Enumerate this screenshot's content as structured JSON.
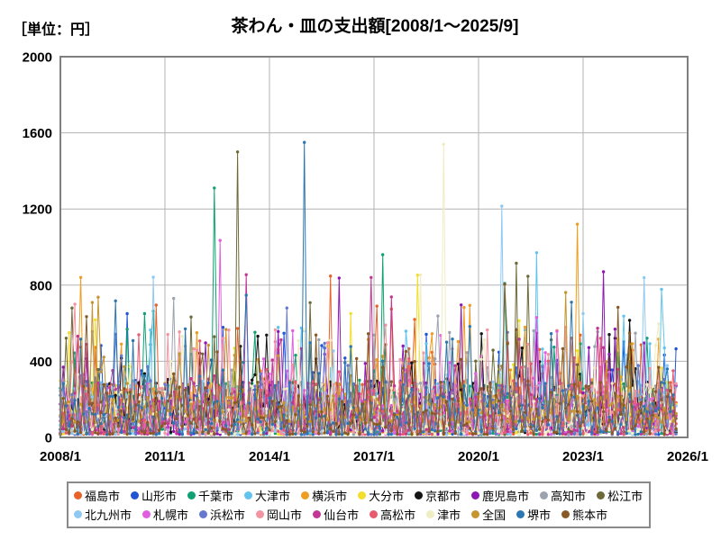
{
  "page": {
    "unit_label": "［単位：円］",
    "title": "茶わん・皿の支出額[2008/1～2025/9]"
  },
  "legend": {
    "items_per_row": 10
  },
  "chart_data": {
    "type": "line",
    "title": "茶わん・皿の支出額[2008/1～2025/9]",
    "unit": "円",
    "xlabel": "",
    "ylabel": "円",
    "grid": true,
    "legend_position": "bottom",
    "ylim": [
      0,
      2000
    ],
    "y_ticks": [
      0,
      400,
      800,
      1200,
      1600,
      2000
    ],
    "x_ticks": [
      "2008/1",
      "2011/1",
      "2014/1",
      "2017/1",
      "2020/1",
      "2023/1",
      "2026/1"
    ],
    "x_tick_month_step": 36,
    "x_range": {
      "start": "2008/1",
      "end_data": "2025/9",
      "end_axis": "2026/1",
      "months_axis": 216,
      "months_data": 213
    },
    "value_profile": {
      "description": "20 city series of monthly expenditure; dense band mostly 0-300 yen with frequent spikes 300-600 and rare spikes 600-1550",
      "base_power": 1.7,
      "moderate_spike_prob": 0.075,
      "moderate_spike_range": [
        280,
        580
      ],
      "high_spike_prob": 0.0075,
      "high_spike_range": [
        580,
        880
      ]
    },
    "series": [
      {
        "name": "福島市",
        "color": "#E8622C",
        "seed": 101,
        "base": [
          15,
          300
        ]
      },
      {
        "name": "山形市",
        "color": "#2155D4",
        "seed": 202,
        "base": [
          15,
          300
        ]
      },
      {
        "name": "千葉市",
        "color": "#0FA173",
        "seed": 303,
        "base": [
          15,
          290
        ]
      },
      {
        "name": "大津市",
        "color": "#62C4EE",
        "seed": 404,
        "base": [
          15,
          300
        ]
      },
      {
        "name": "横浜市",
        "color": "#EC9D22",
        "seed": 505,
        "base": [
          20,
          310
        ]
      },
      {
        "name": "大分市",
        "color": "#F2DE2B",
        "seed": 606,
        "base": [
          15,
          300
        ]
      },
      {
        "name": "京都市",
        "color": "#141414",
        "seed": 707,
        "base": [
          20,
          310
        ]
      },
      {
        "name": "鹿児島市",
        "color": "#8E18B4",
        "seed": 808,
        "base": [
          15,
          290
        ]
      },
      {
        "name": "高知市",
        "color": "#9CA3AE",
        "seed": 909,
        "base": [
          15,
          290
        ]
      },
      {
        "name": "松江市",
        "color": "#6E6A38",
        "seed": 110,
        "base": [
          15,
          290
        ]
      },
      {
        "name": "北九州市",
        "color": "#8FC9F2",
        "seed": 211,
        "base": [
          15,
          300
        ]
      },
      {
        "name": "札幌市",
        "color": "#E05FE0",
        "seed": 312,
        "base": [
          15,
          290
        ]
      },
      {
        "name": "浜松市",
        "color": "#6679CE",
        "seed": 413,
        "base": [
          15,
          290
        ]
      },
      {
        "name": "岡山市",
        "color": "#F294A2",
        "seed": 514,
        "base": [
          15,
          290
        ]
      },
      {
        "name": "仙台市",
        "color": "#C23795",
        "seed": 615,
        "base": [
          15,
          290
        ]
      },
      {
        "name": "高松市",
        "color": "#E85A6E",
        "seed": 716,
        "base": [
          15,
          300
        ]
      },
      {
        "name": "津市",
        "color": "#EFEDC2",
        "seed": 817,
        "base": [
          15,
          280
        ]
      },
      {
        "name": "全国",
        "color": "#C6952F",
        "seed": 918,
        "base": [
          80,
          220
        ]
      },
      {
        "name": "堺市",
        "color": "#2C77B2",
        "seed": 119,
        "base": [
          15,
          290
        ]
      },
      {
        "name": "熊本市",
        "color": "#8A5A26",
        "seed": 220,
        "base": [
          15,
          290
        ]
      }
    ],
    "notable_spikes": [
      {
        "series": "松江市",
        "month": "2008/5",
        "value": 680
      },
      {
        "series": "岡山市",
        "month": "2008/6",
        "value": 700
      },
      {
        "series": "横浜市",
        "month": "2008/8",
        "value": 840
      },
      {
        "series": "山形市",
        "month": "2009/12",
        "value": 650
      },
      {
        "series": "高知市",
        "month": "2011/4",
        "value": 730
      },
      {
        "series": "千葉市",
        "month": "2012/6",
        "value": 1310
      },
      {
        "series": "札幌市",
        "month": "2012/8",
        "value": 1035
      },
      {
        "series": "松江市",
        "month": "2013/2",
        "value": 1500
      },
      {
        "series": "浜松市",
        "month": "2014/7",
        "value": 680
      },
      {
        "series": "堺市",
        "month": "2015/1",
        "value": 1550
      },
      {
        "series": "大分市",
        "month": "2016/5",
        "value": 650
      },
      {
        "series": "仙台市",
        "month": "2016/12",
        "value": 840
      },
      {
        "series": "千葉市",
        "month": "2017/4",
        "value": 960
      },
      {
        "series": "津市",
        "month": "2019/1",
        "value": 1540
      },
      {
        "series": "北九州市",
        "month": "2020/9",
        "value": 1215
      },
      {
        "series": "松江市",
        "month": "2021/2",
        "value": 915
      },
      {
        "series": "大津市",
        "month": "2021/9",
        "value": 970
      },
      {
        "series": "横浜市",
        "month": "2022/11",
        "value": 1120
      },
      {
        "series": "北九州市",
        "month": "2023/1",
        "value": 650
      },
      {
        "series": "鹿児島市",
        "month": "2023/8",
        "value": 870
      },
      {
        "series": "津市",
        "month": "2025/3",
        "value": 596
      }
    ]
  }
}
